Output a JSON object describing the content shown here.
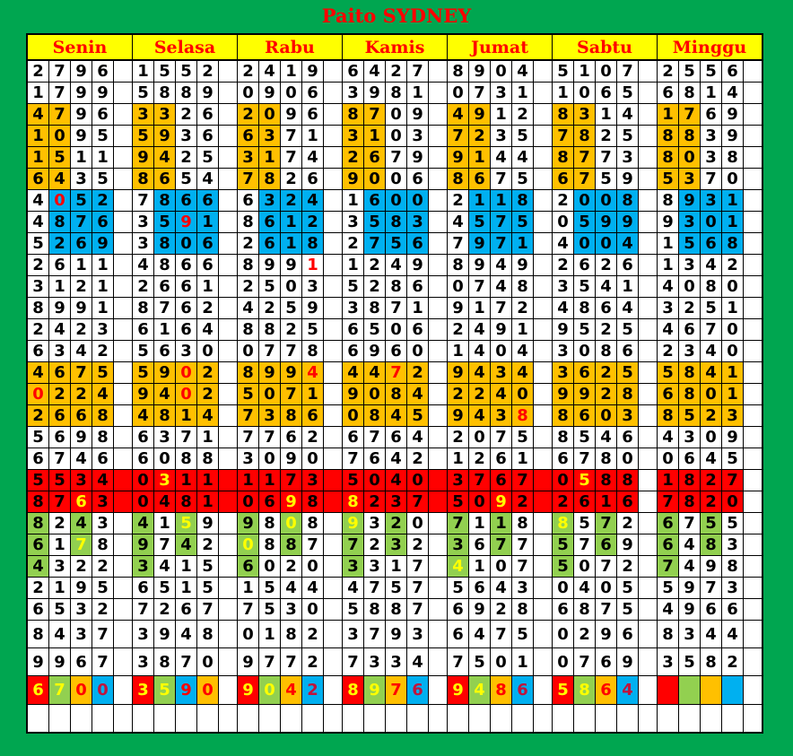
{
  "title": "Paito SYDNEY",
  "days": [
    "Senin",
    "Selasa",
    "Rabu",
    "Kamis",
    "Jumat",
    "Sabtu",
    "Minggu"
  ],
  "colors": {
    "orange": "#ffc000",
    "blue": "#00b0f0",
    "red": "#ff0000",
    "green": "#92d050",
    "yellow": "#ffff00",
    "frame": "#00a650"
  },
  "rows": [
    {
      "values": [
        "2796",
        "1552",
        "2419",
        "6427",
        "8904",
        "5107",
        "2556"
      ]
    },
    {
      "values": [
        "1799",
        "5889",
        "0906",
        "3981",
        "0731",
        "1065",
        "6814"
      ]
    },
    {
      "values": [
        "4796",
        "3326",
        "2096",
        "8709",
        "4912",
        "8314",
        "1769"
      ],
      "fill": "oo--"
    },
    {
      "values": [
        "1095",
        "5936",
        "6371",
        "3103",
        "7235",
        "7825",
        "8839"
      ],
      "fill": "oo--"
    },
    {
      "values": [
        "1511",
        "9425",
        "3174",
        "2679",
        "9144",
        "8773",
        "8038"
      ],
      "fill": "oo--"
    },
    {
      "values": [
        "6435",
        "8654",
        "7826",
        "9006",
        "8675",
        "6759",
        "5370"
      ],
      "fill": "oo--"
    },
    {
      "values": [
        "4052",
        "7866",
        "6324",
        "1600",
        "2118",
        "2008",
        "8931"
      ],
      "fill": "-bbb",
      "marks": [
        [
          0,
          1,
          "r"
        ]
      ]
    },
    {
      "values": [
        "4876",
        "3591",
        "8612",
        "3583",
        "4575",
        "0599",
        "9301"
      ],
      "fill": "-bbb",
      "marks": [
        [
          1,
          2,
          "r"
        ]
      ]
    },
    {
      "values": [
        "5269",
        "3806",
        "2618",
        "2756",
        "7971",
        "4004",
        "1568"
      ],
      "fill": "-bbb"
    },
    {
      "values": [
        "2611",
        "4866",
        "8991",
        "1249",
        "8949",
        "2626",
        "1342"
      ],
      "marks": [
        [
          2,
          3,
          "r"
        ]
      ]
    },
    {
      "values": [
        "3121",
        "2661",
        "2503",
        "5286",
        "0748",
        "3541",
        "4080"
      ]
    },
    {
      "values": [
        "8991",
        "8762",
        "4259",
        "3871",
        "9172",
        "4864",
        "3251"
      ]
    },
    {
      "values": [
        "2423",
        "6164",
        "8825",
        "6506",
        "2491",
        "9525",
        "4670"
      ]
    },
    {
      "values": [
        "6342",
        "5630",
        "0778",
        "6960",
        "1404",
        "3086",
        "2340"
      ]
    },
    {
      "values": [
        "4675",
        "5902",
        "8994",
        "4472",
        "9434",
        "3625",
        "5841"
      ],
      "fill": "oooo",
      "marks": [
        [
          1,
          2,
          "r"
        ],
        [
          2,
          3,
          "r"
        ],
        [
          3,
          2,
          "r"
        ]
      ]
    },
    {
      "values": [
        "0224",
        "9402",
        "5071",
        "9084",
        "2240",
        "9928",
        "6801"
      ],
      "fill": "oooo",
      "marks": [
        [
          0,
          0,
          "r"
        ],
        [
          1,
          2,
          "r"
        ]
      ]
    },
    {
      "values": [
        "2668",
        "4814",
        "7386",
        "0845",
        "9438",
        "8603",
        "8523"
      ],
      "fill": "oooo",
      "marks": [
        [
          4,
          3,
          "r"
        ]
      ]
    },
    {
      "values": [
        "5698",
        "6371",
        "7762",
        "6764",
        "2075",
        "8546",
        "4309"
      ]
    },
    {
      "values": [
        "6746",
        "6088",
        "3090",
        "7642",
        "1261",
        "6780",
        "0645"
      ]
    },
    {
      "values": [
        "5534",
        "0311",
        "1173",
        "5040",
        "3767",
        "0588",
        "1827"
      ],
      "fill": "rrrr",
      "redgap": true,
      "marks": [
        [
          1,
          1,
          "y"
        ],
        [
          5,
          1,
          "y"
        ]
      ]
    },
    {
      "values": [
        "8763",
        "0481",
        "0698",
        "8237",
        "5092",
        "2616",
        "7820"
      ],
      "fill": "rrrr",
      "redgap": true,
      "marks": [
        [
          0,
          2,
          "y"
        ],
        [
          2,
          2,
          "y"
        ],
        [
          3,
          0,
          "y"
        ],
        [
          4,
          2,
          "y"
        ]
      ]
    },
    {
      "values": [
        "8243",
        "4159",
        "9808",
        "9320",
        "7118",
        "8572",
        "6755"
      ],
      "fill": "g-g-",
      "marks": [
        [
          1,
          2,
          "y"
        ],
        [
          2,
          2,
          "y"
        ],
        [
          3,
          0,
          "y"
        ],
        [
          5,
          0,
          "y"
        ]
      ]
    },
    {
      "values": [
        "6178",
        "9742",
        "0887",
        "7232",
        "3677",
        "5769",
        "6483"
      ],
      "fill": "g-g-",
      "marks": [
        [
          0,
          2,
          "y"
        ],
        [
          2,
          0,
          "y"
        ]
      ]
    },
    {
      "values": [
        "4322",
        "3415",
        "6020",
        "3317",
        "4107",
        "5072",
        "7498"
      ],
      "fill": "g---",
      "marks": [
        [
          4,
          0,
          "y"
        ]
      ]
    },
    {
      "values": [
        "2195",
        "6515",
        "1544",
        "4757",
        "5643",
        "0405",
        "5973"
      ]
    },
    {
      "values": [
        "6532",
        "7267",
        "7530",
        "5887",
        "6928",
        "6875",
        "4966"
      ]
    },
    {
      "values": [
        "8437",
        "3948",
        "0182",
        "3793",
        "6475",
        "0296",
        "8344"
      ]
    },
    {
      "values": [
        "9967",
        "3870",
        "9772",
        "7334",
        "7501",
        "0769",
        "3582"
      ]
    }
  ],
  "summary": {
    "values": [
      "6700",
      "3590",
      "9042",
      "8976",
      "9486",
      "5864",
      ""
    ],
    "fill": [
      "rgob",
      "rgbo",
      "rgob",
      "rgob",
      "rgob",
      "rgob",
      "rgob"
    ],
    "text": [
      "yyrd",
      "yyrr",
      "yyrd",
      "yyrd",
      "yyrd",
      "yyrd",
      "----"
    ]
  }
}
